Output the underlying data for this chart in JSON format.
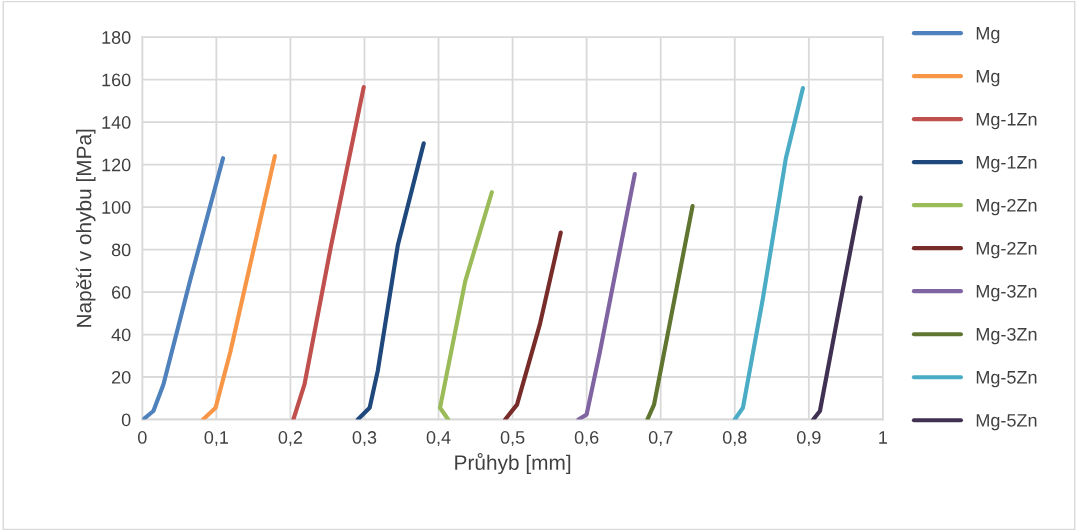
{
  "chart_data": {
    "type": "line",
    "xlabel": "Průhyb [mm]",
    "ylabel": "Napětí v ohybu [MPa]",
    "xlim": [
      0,
      1
    ],
    "ylim": [
      0,
      180
    ],
    "xticks": [
      0,
      {
        "value": 0.1,
        "label": "0,1"
      },
      {
        "value": 0.2,
        "label": "0,2"
      },
      {
        "value": 0.3,
        "label": "0,3"
      },
      {
        "value": 0.4,
        "label": "0,4"
      },
      {
        "value": 0.5,
        "label": "0,5"
      },
      {
        "value": 0.6,
        "label": "0,6"
      },
      {
        "value": 0.7,
        "label": "0,7"
      },
      {
        "value": 0.8,
        "label": "0,8"
      },
      {
        "value": 0.9,
        "label": "0,9"
      },
      1
    ],
    "yticks": [
      0,
      20,
      40,
      60,
      80,
      100,
      120,
      140,
      160,
      180
    ],
    "grid": true,
    "legend": "right",
    "marker": "none",
    "line_style": "solid",
    "series": [
      {
        "name": "Mg",
        "color": "#4f81bd",
        "x": [
          0.001,
          0.015,
          0.0285,
          0.065,
          0.109
        ],
        "values": [
          0,
          4,
          16.5,
          66,
          123
        ]
      },
      {
        "name": "Mg",
        "color": "#f79646",
        "x": [
          0.082,
          0.099,
          0.119,
          0.179
        ],
        "values": [
          0,
          5.5,
          32,
          124
        ]
      },
      {
        "name": "Mg-1Zn",
        "color": "#c0504d",
        "x": [
          0.204,
          0.219,
          0.255,
          0.299
        ],
        "values": [
          0,
          16.5,
          82,
          156.5
        ]
      },
      {
        "name": "Mg-1Zn",
        "color": "#1f497d",
        "x": [
          0.291,
          0.307,
          0.318,
          0.345,
          0.38
        ],
        "values": [
          0,
          5.5,
          23,
          82,
          130
        ]
      },
      {
        "name": "Mg-2Zn",
        "color": "#9bbb59",
        "x": [
          0.413,
          0.402,
          0.436,
          0.472
        ],
        "values": [
          0,
          5.5,
          65,
          107
        ]
      },
      {
        "name": "Mg-2Zn",
        "color": "#772c2a",
        "x": [
          0.49,
          0.506,
          0.537,
          0.565
        ],
        "values": [
          0,
          7,
          45,
          88
        ]
      },
      {
        "name": "Mg-3Zn",
        "color": "#8064a2",
        "x": [
          0.589,
          0.6,
          0.618,
          0.665
        ],
        "values": [
          0,
          2.4,
          32,
          115.5
        ]
      },
      {
        "name": "Mg-3Zn",
        "color": "#5f7530",
        "x": [
          0.682,
          0.691,
          0.743
        ],
        "values": [
          0,
          7,
          100.5
        ]
      },
      {
        "name": "Mg-5Zn",
        "color": "#4bacc6",
        "x": [
          0.8,
          0.811,
          0.838,
          0.869,
          0.892
        ],
        "values": [
          0,
          5.5,
          57,
          123,
          156
        ]
      },
      {
        "name": "Mg-5Zn",
        "color": "#403152",
        "x": [
          0.906,
          0.915,
          0.942,
          0.97
        ],
        "values": [
          0,
          4,
          54,
          104.5
        ]
      }
    ]
  }
}
